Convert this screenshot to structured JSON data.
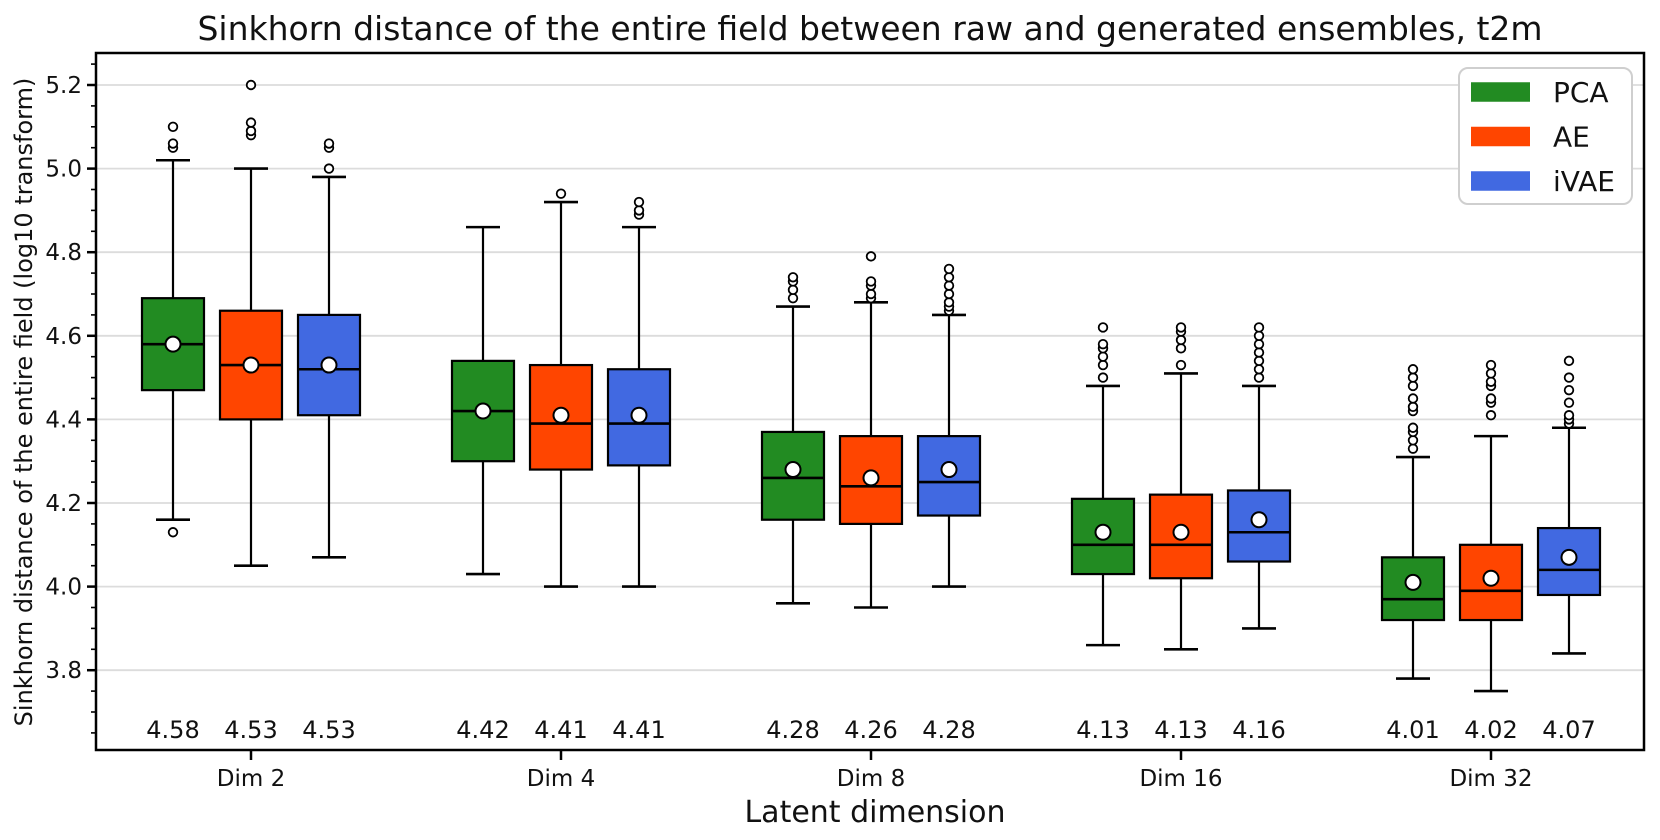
{
  "chart_data": {
    "type": "boxplot",
    "title": "Sinkhorn distance of the entire field between raw and generated ensembles, t2m",
    "xlabel": "Latent dimension",
    "ylabel": "Sinkhorn distance of the entire field (log10 transform)",
    "categories": [
      "Dim 2",
      "Dim 4",
      "Dim 8",
      "Dim 16",
      "Dim 32"
    ],
    "ylim": [
      3.61,
      5.28
    ],
    "yticks": [
      3.8,
      4.0,
      4.2,
      4.4,
      4.6,
      4.8,
      5.0,
      5.2
    ],
    "ytick_labels": [
      "3.8",
      "4.0",
      "4.2",
      "4.4",
      "4.6",
      "4.8",
      "5.0",
      "5.2"
    ],
    "grid": true,
    "legend_position": "upper right",
    "series": [
      {
        "name": "PCA",
        "color": "#228B22",
        "boxes": [
          {
            "whislo": 4.16,
            "q1": 4.47,
            "med": 4.58,
            "q3": 4.69,
            "whishi": 5.02,
            "mean": 4.58,
            "fliers": [
              4.13,
              5.05,
              5.06,
              5.1
            ],
            "mean_label": "4.58"
          },
          {
            "whislo": 4.03,
            "q1": 4.3,
            "med": 4.42,
            "q3": 4.54,
            "whishi": 4.86,
            "mean": 4.42,
            "fliers": [],
            "mean_label": "4.42"
          },
          {
            "whislo": 3.96,
            "q1": 4.16,
            "med": 4.26,
            "q3": 4.37,
            "whishi": 4.67,
            "mean": 4.28,
            "fliers": [
              4.69,
              4.71,
              4.73,
              4.74
            ],
            "mean_label": "4.28"
          },
          {
            "whislo": 3.86,
            "q1": 4.03,
            "med": 4.1,
            "q3": 4.21,
            "whishi": 4.48,
            "mean": 4.13,
            "fliers": [
              4.5,
              4.53,
              4.55,
              4.57,
              4.58,
              4.62
            ],
            "mean_label": "4.13"
          },
          {
            "whislo": 3.78,
            "q1": 3.92,
            "med": 3.97,
            "q3": 4.07,
            "whishi": 4.31,
            "mean": 4.01,
            "fliers": [
              4.33,
              4.35,
              4.37,
              4.38,
              4.42,
              4.43,
              4.45,
              4.48,
              4.5,
              4.52
            ],
            "mean_label": "4.01"
          }
        ]
      },
      {
        "name": "AE",
        "color": "#FF4500",
        "boxes": [
          {
            "whislo": 4.05,
            "q1": 4.4,
            "med": 4.53,
            "q3": 4.66,
            "whishi": 5.0,
            "mean": 4.53,
            "fliers": [
              5.08,
              5.09,
              5.11,
              5.2
            ],
            "mean_label": "4.53"
          },
          {
            "whislo": 4.0,
            "q1": 4.28,
            "med": 4.39,
            "q3": 4.53,
            "whishi": 4.92,
            "mean": 4.41,
            "fliers": [
              4.94
            ],
            "mean_label": "4.41"
          },
          {
            "whislo": 3.95,
            "q1": 4.15,
            "med": 4.24,
            "q3": 4.36,
            "whishi": 4.68,
            "mean": 4.26,
            "fliers": [
              4.69,
              4.7,
              4.72,
              4.73,
              4.79
            ],
            "mean_label": "4.26"
          },
          {
            "whislo": 3.85,
            "q1": 4.02,
            "med": 4.1,
            "q3": 4.22,
            "whishi": 4.51,
            "mean": 4.13,
            "fliers": [
              4.53,
              4.57,
              4.59,
              4.61,
              4.62
            ],
            "mean_label": "4.13"
          },
          {
            "whislo": 3.75,
            "q1": 3.92,
            "med": 3.99,
            "q3": 4.1,
            "whishi": 4.36,
            "mean": 4.02,
            "fliers": [
              4.41,
              4.44,
              4.45,
              4.48,
              4.49,
              4.51,
              4.53
            ],
            "mean_label": "4.02"
          }
        ]
      },
      {
        "name": "iVAE",
        "color": "#4169E1",
        "boxes": [
          {
            "whislo": 4.07,
            "q1": 4.41,
            "med": 4.52,
            "q3": 4.65,
            "whishi": 4.98,
            "mean": 4.53,
            "fliers": [
              5.0,
              5.05,
              5.06
            ],
            "mean_label": "4.53"
          },
          {
            "whislo": 4.0,
            "q1": 4.29,
            "med": 4.39,
            "q3": 4.52,
            "whishi": 4.86,
            "mean": 4.41,
            "fliers": [
              4.89,
              4.9,
              4.92
            ],
            "mean_label": "4.41"
          },
          {
            "whislo": 4.0,
            "q1": 4.17,
            "med": 4.25,
            "q3": 4.36,
            "whishi": 4.65,
            "mean": 4.28,
            "fliers": [
              4.66,
              4.67,
              4.68,
              4.7,
              4.72,
              4.74,
              4.76
            ],
            "mean_label": "4.28"
          },
          {
            "whislo": 3.9,
            "q1": 4.06,
            "med": 4.13,
            "q3": 4.23,
            "whishi": 4.48,
            "mean": 4.16,
            "fliers": [
              4.5,
              4.52,
              4.54,
              4.56,
              4.58,
              4.6,
              4.62
            ],
            "mean_label": "4.16"
          },
          {
            "whislo": 3.84,
            "q1": 3.98,
            "med": 4.04,
            "q3": 4.14,
            "whishi": 4.38,
            "mean": 4.07,
            "fliers": [
              4.39,
              4.4,
              4.41,
              4.44,
              4.47,
              4.5,
              4.54
            ],
            "mean_label": "4.07"
          }
        ]
      }
    ]
  }
}
